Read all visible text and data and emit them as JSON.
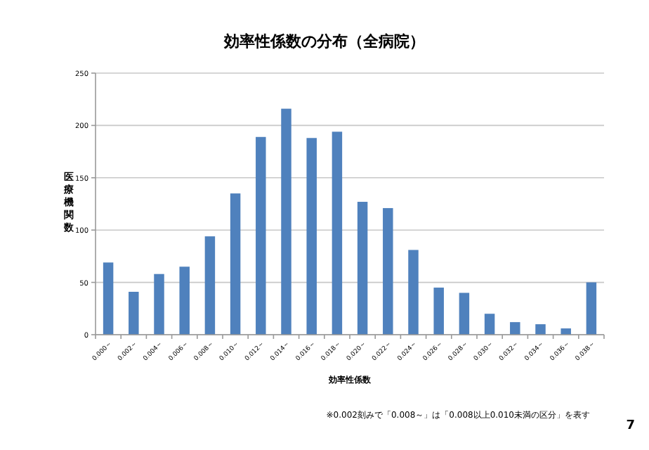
{
  "chart_data": {
    "type": "bar",
    "title": "効率性係数の分布（全病院）",
    "xlabel": "効率性係数",
    "ylabel": "医療機関数",
    "categories": [
      "0.000～",
      "0.002～",
      "0.004～",
      "0.006～",
      "0.008～",
      "0.010～",
      "0.012～",
      "0.014～",
      "0.016～",
      "0.018～",
      "0.020～",
      "0.022～",
      "0.024～",
      "0.026～",
      "0.028～",
      "0.030～",
      "0.032～",
      "0.034～",
      "0.036～",
      "0.038～"
    ],
    "values": [
      69,
      41,
      58,
      65,
      94,
      135,
      189,
      216,
      188,
      194,
      127,
      121,
      81,
      45,
      40,
      20,
      12,
      10,
      6,
      50
    ],
    "color": "#4f81bd",
    "ylim": [
      0,
      250
    ],
    "yticks": [
      0,
      50,
      100,
      150,
      200,
      250
    ],
    "grid": "y",
    "annotations": [
      "※0.002刻みで「0.008～」は「0.008以上0.010未満の区分」を表す",
      "7"
    ]
  }
}
